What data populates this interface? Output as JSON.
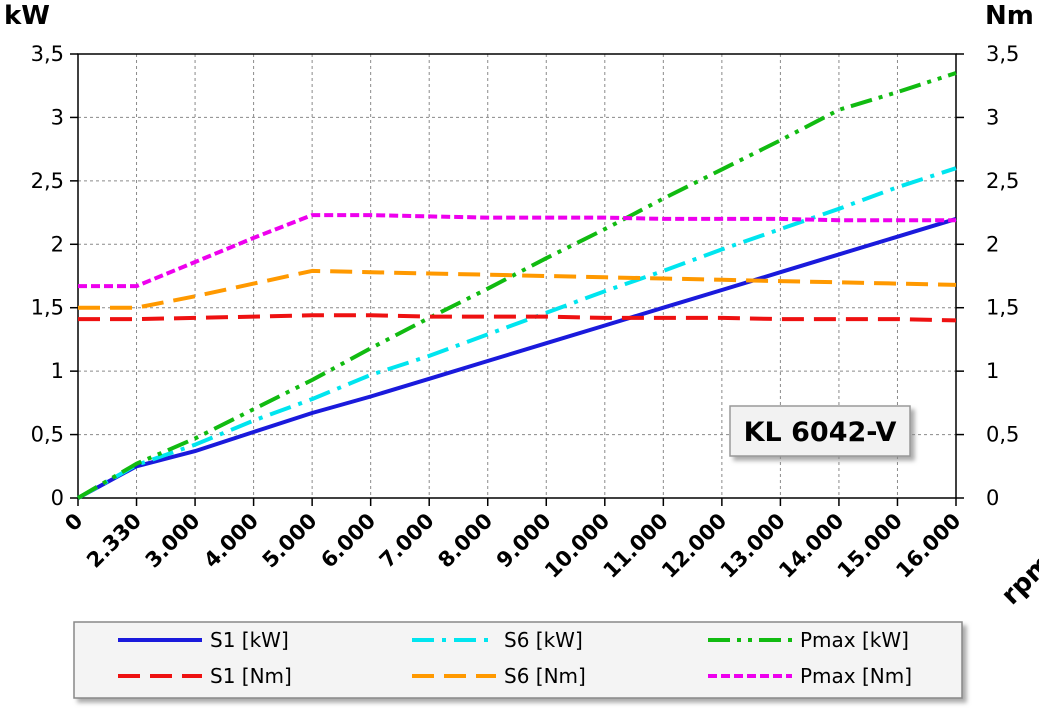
{
  "chart_data": {
    "type": "line",
    "title": "KL 6042-V",
    "left_axis_label": "kW",
    "right_axis_label": "Nm",
    "xlabel": "rpm",
    "x_tick_labels": [
      "0",
      "2.330",
      "3.000",
      "4.000",
      "5.000",
      "6.000",
      "7.000",
      "8.000",
      "9.000",
      "10.000",
      "11.000",
      "12.000",
      "13.000",
      "14.000",
      "15.000",
      "16.000"
    ],
    "y_ticks": [
      0,
      0.5,
      1,
      1.5,
      2,
      2.5,
      3,
      3.5
    ],
    "y_tick_labels": [
      "0",
      "0,5",
      "1",
      "1,5",
      "2",
      "2,5",
      "3",
      "3,5"
    ],
    "ylim": [
      0,
      3.5
    ],
    "grid": true,
    "legend_position": "bottom",
    "series": [
      {
        "name": "S1 [kW]",
        "color": "#1a1adc",
        "dash": "solid",
        "y": [
          0,
          0.25,
          0.37,
          0.52,
          0.67,
          0.8,
          0.94,
          1.08,
          1.22,
          1.36,
          1.5,
          1.64,
          1.78,
          1.92,
          2.06,
          2.2
        ]
      },
      {
        "name": "S6 [kW]",
        "color": "#00e5ef",
        "dash": "dashdot",
        "y": [
          0,
          0.26,
          0.42,
          0.61,
          0.78,
          0.97,
          1.12,
          1.29,
          1.46,
          1.63,
          1.79,
          1.96,
          2.12,
          2.28,
          2.45,
          2.6
        ]
      },
      {
        "name": "Pmax [kW]",
        "color": "#11bb11",
        "dash": "dashdotdot",
        "y": [
          0,
          0.27,
          0.47,
          0.7,
          0.93,
          1.18,
          1.42,
          1.65,
          1.89,
          2.12,
          2.36,
          2.59,
          2.82,
          3.06,
          3.2,
          3.35
        ]
      },
      {
        "name": "S1 [Nm]",
        "color": "#ee1111",
        "dash": "dash",
        "y": [
          1.41,
          1.41,
          1.42,
          1.43,
          1.44,
          1.44,
          1.43,
          1.43,
          1.43,
          1.42,
          1.42,
          1.42,
          1.41,
          1.41,
          1.41,
          1.4
        ]
      },
      {
        "name": "S6 [Nm]",
        "color": "#ff9900",
        "dash": "dash",
        "y": [
          1.5,
          1.5,
          1.59,
          1.69,
          1.79,
          1.78,
          1.77,
          1.76,
          1.75,
          1.74,
          1.73,
          1.72,
          1.71,
          1.7,
          1.69,
          1.68
        ]
      },
      {
        "name": "Pmax [Nm]",
        "color": "#ee00ee",
        "dash": "dot",
        "y": [
          1.67,
          1.67,
          1.86,
          2.05,
          2.23,
          2.23,
          2.22,
          2.21,
          2.21,
          2.21,
          2.2,
          2.2,
          2.2,
          2.19,
          2.19,
          2.19
        ]
      }
    ]
  }
}
